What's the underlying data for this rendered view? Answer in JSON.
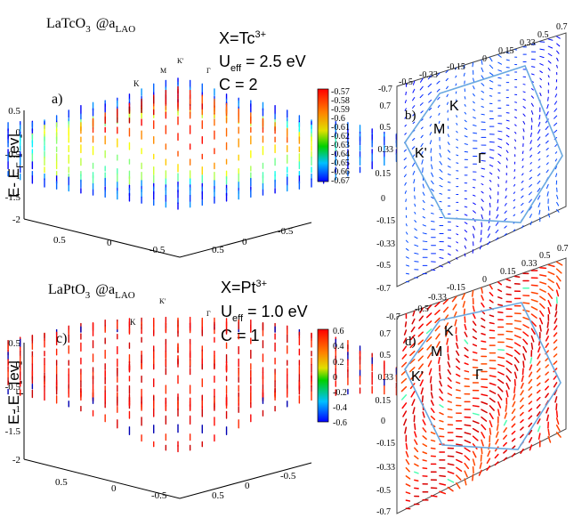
{
  "chart_data": [
    {
      "type": "surface3d",
      "panel_label": "a)",
      "material": "LaTcO",
      "material_sub": "3",
      "at_label": "@a",
      "at_sub": "LAO",
      "x_label": "X=Tc",
      "x_sup": "3+",
      "u_label": "U",
      "u_sub": "eff",
      "u_value": " = 2.5 eV",
      "c_label": "C = 2",
      "axis_label_main": "E- E",
      "axis_label_sub": "F",
      "axis_label_unit": " [ev]",
      "z_ticks": [
        "0.5",
        "0",
        "-0.5",
        "-1",
        "-1.5",
        "-2"
      ],
      "kx_ticks": [
        "0.5",
        "0",
        "-0.5"
      ],
      "ky_ticks": [
        "0.5",
        "0",
        "-0.5"
      ],
      "kpoint_labels": [
        "K",
        "M",
        "K'",
        "Γ"
      ],
      "colorbar": {
        "ticks": [
          "-0.57",
          "-0.58",
          "-0.59",
          "-0.6",
          "-0.61",
          "-0.62",
          "-0.63",
          "-0.64",
          "-0.65",
          "-0.66",
          "-0.67"
        ],
        "min": -0.67,
        "max": -0.57
      }
    },
    {
      "type": "surface3d",
      "panel_label": "c)",
      "material": "LaPtO",
      "material_sub": "3",
      "at_label": "@a",
      "at_sub": "LAO",
      "x_label": "X=Pt",
      "x_sup": "3+",
      "u_label": "U",
      "u_sub": "eff",
      "u_value": " = 1.0 eV",
      "c_label": "C = 1",
      "axis_label_main": "E- E",
      "axis_label_sub": "F",
      "axis_label_unit": " [ev]",
      "z_ticks": [
        "0.5",
        "0",
        "-0.5",
        "-1",
        "-1.5",
        "-2"
      ],
      "kx_ticks": [
        "0.5",
        "0",
        "-0.5"
      ],
      "ky_ticks": [
        "0.5",
        "0",
        "-0.5"
      ],
      "kpoint_labels": [
        "K",
        "K'",
        "Γ"
      ],
      "colorbar": {
        "ticks": [
          "0.6",
          "0.4",
          "0.2",
          "0",
          "-0.2",
          "-0.4",
          "-0.6"
        ],
        "min": -0.6,
        "max": 0.6
      }
    },
    {
      "type": "vector-field",
      "panel_label": "b)",
      "top_ticks": [
        "-0.7",
        "-0.5",
        "-0.33",
        "-0.15",
        "0",
        "0.15",
        "0.33",
        "0.5",
        "0.7"
      ],
      "left_ticks": [
        "0.7",
        "0.5",
        "0.33",
        "0.15",
        "0",
        "-0.15",
        "-0.33",
        "-0.5",
        "-0.7"
      ],
      "point_labels": [
        "K",
        "M",
        "K'",
        "Γ"
      ],
      "xlim": [
        -0.7,
        0.7
      ],
      "ylim": [
        -0.7,
        0.7
      ]
    },
    {
      "type": "vector-field",
      "panel_label": "d)",
      "top_ticks": [
        "-0.7",
        "-0.5",
        "-0.33",
        "-0.15",
        "0",
        "0.15",
        "0.33",
        "0.5",
        "0.7"
      ],
      "left_ticks": [
        "0.7",
        "0.5",
        "0.33",
        "0.15",
        "0",
        "-0.15",
        "-0.33",
        "-0.5",
        "-0.7"
      ],
      "point_labels": [
        "K",
        "M",
        "K'",
        "Γ"
      ],
      "xlim": [
        -0.7,
        0.7
      ],
      "ylim": [
        -0.7,
        0.7
      ]
    }
  ]
}
